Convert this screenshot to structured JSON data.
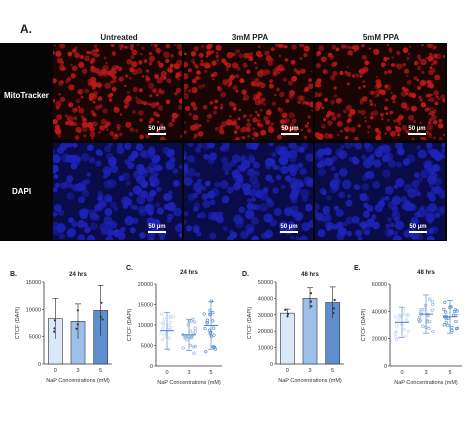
{
  "figure": {
    "label": "A.",
    "columns": [
      "Untreated",
      "3mM PPA",
      "5mM PPA"
    ],
    "rows": [
      "MitoTracker",
      "DAPI"
    ],
    "scale_label": "50 µm",
    "mito_color": "#c0191a",
    "dapi_color": "#1d23b8"
  },
  "chart_data": [
    {
      "panel": "B.",
      "title": "24 hrs",
      "type": "bar",
      "categories": [
        "0",
        "3",
        "5"
      ],
      "series": [
        {
          "values": [
            8300,
            7800,
            9800
          ],
          "errors": [
            3700,
            3200,
            4600
          ]
        }
      ],
      "ylim": [
        0,
        15000
      ],
      "yticks": [
        "0",
        "5000",
        "10000",
        "15000"
      ],
      "ylabel": "CTCF (DAPI)",
      "xlabel": "NaP Concentrations (mM)",
      "colors": [
        "#dbe8f7",
        "#9dc0ea",
        "#5f8fcf"
      ]
    },
    {
      "panel": "C.",
      "title": "24 hrs",
      "type": "scatter",
      "categories": [
        "0",
        "3",
        "5"
      ],
      "series": [
        {
          "means": [
            8600,
            7600,
            9900
          ],
          "errors": [
            4500,
            3800,
            5800
          ]
        }
      ],
      "ylim": [
        0,
        20000
      ],
      "yticks": [
        "0",
        "5000",
        "10000",
        "15000",
        "20000"
      ],
      "ylabel": "CTCF (DAPI)",
      "xlabel": "NaP Concentrations (mM)",
      "colors": [
        "#c9dcf3",
        "#8fb6e6",
        "#5f8fcf"
      ]
    },
    {
      "panel": "D.",
      "title": "48 hrs",
      "type": "bar",
      "categories": [
        "0",
        "3",
        "5"
      ],
      "series": [
        {
          "values": [
            31000,
            40000,
            37500
          ],
          "errors": [
            2500,
            6500,
            9500
          ]
        }
      ],
      "ylim": [
        0,
        50000
      ],
      "yticks": [
        "0",
        "10000",
        "20000",
        "30000",
        "40000",
        "50000"
      ],
      "ylabel": "CTCF (DAPI)",
      "xlabel": "NaP Concentrations (mM)",
      "colors": [
        "#dbe8f7",
        "#9dc0ea",
        "#5f8fcf"
      ]
    },
    {
      "panel": "E.",
      "title": "48 hrs",
      "type": "scatter",
      "categories": [
        "0",
        "3",
        "5"
      ],
      "series": [
        {
          "means": [
            32000,
            38000,
            36000
          ],
          "errors": [
            11000,
            14000,
            12000
          ]
        }
      ],
      "ylim": [
        0,
        60000
      ],
      "yticks": [
        "0",
        "20000",
        "40000",
        "60000"
      ],
      "ylabel": "CTCF (DAPI)",
      "xlabel": "NaP Concentrations (mM)",
      "colors": [
        "#c9dcf3",
        "#8fb6e6",
        "#5f8fcf"
      ]
    }
  ]
}
